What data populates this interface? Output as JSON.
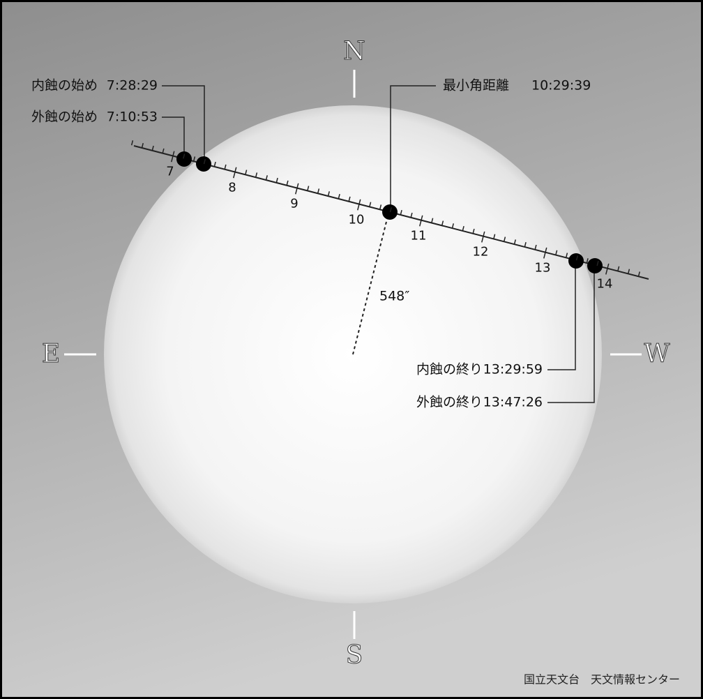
{
  "compass": {
    "north": "N",
    "south": "S",
    "east": "E",
    "west": "W"
  },
  "hours": [
    "7",
    "8",
    "9",
    "10",
    "11",
    "12",
    "13",
    "14"
  ],
  "events": [
    {
      "label": "外蝕の始め",
      "time": "7:10:53"
    },
    {
      "label": "内蝕の始め",
      "time": "7:28:29"
    },
    {
      "label": "最小角距離",
      "time": "10:29:39"
    },
    {
      "label": "内蝕の終り",
      "time": "13:29:59"
    },
    {
      "label": "外蝕の終り",
      "time": "13:47:26"
    }
  ],
  "distance_label": "548″",
  "credit": "国立天文台　天文情報センター"
}
